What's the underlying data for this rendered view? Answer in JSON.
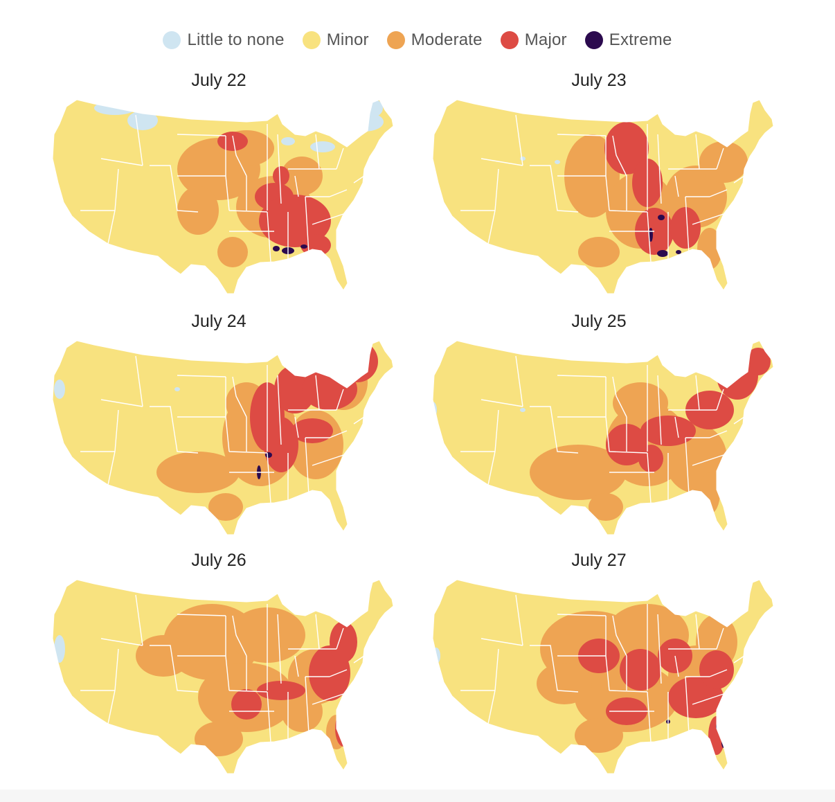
{
  "legend": [
    {
      "label": "Little to none",
      "color": "#cfe5f1"
    },
    {
      "label": "Minor",
      "color": "#f8e27f"
    },
    {
      "label": "Moderate",
      "color": "#eea453"
    },
    {
      "label": "Major",
      "color": "#dd4b44"
    },
    {
      "label": "Extreme",
      "color": "#2b0a4e"
    }
  ],
  "panels": [
    {
      "date": "July 22"
    },
    {
      "date": "July 23"
    },
    {
      "date": "July 24"
    },
    {
      "date": "July 25"
    },
    {
      "date": "July 26"
    },
    {
      "date": "July 27"
    }
  ]
}
